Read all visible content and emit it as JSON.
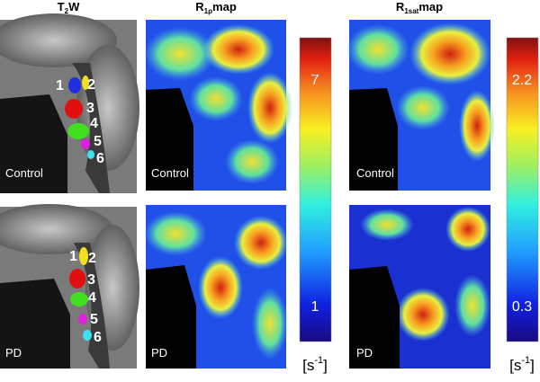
{
  "columns": [
    {
      "title": {
        "base": "T",
        "sub": "2",
        "rest": "W"
      }
    },
    {
      "title": {
        "base": "R",
        "sub": "1ρ",
        "rest": "map"
      }
    },
    {
      "title": {
        "base": "R",
        "sub": "1sat",
        "rest": "map"
      }
    }
  ],
  "rows": [
    {
      "label": "Control"
    },
    {
      "label": "PD"
    }
  ],
  "roi_labels": [
    "1",
    "2",
    "3",
    "4",
    "5",
    "6"
  ],
  "colorbars": [
    {
      "max": "7",
      "min": "1",
      "unit": {
        "base": "[s",
        "sup": "-1",
        "rest": "]"
      }
    },
    {
      "max": "2.2",
      "min": "0.3",
      "unit": {
        "base": "[s",
        "sup": "-1",
        "rest": "]"
      }
    }
  ]
}
